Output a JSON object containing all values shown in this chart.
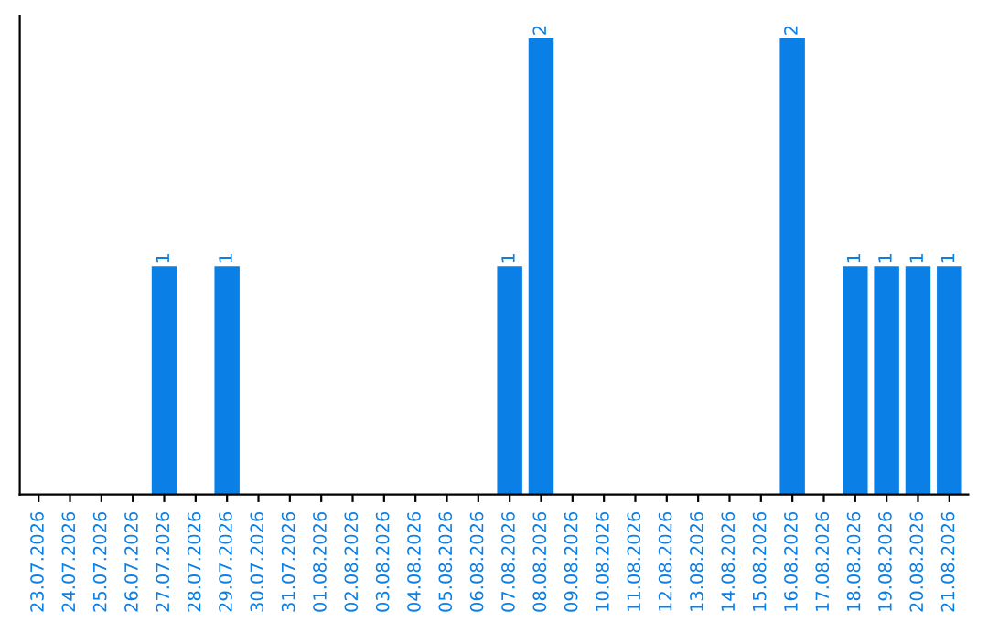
{
  "chart_data": {
    "type": "bar",
    "categories": [
      "23.07.2026",
      "24.07.2026",
      "25.07.2026",
      "26.07.2026",
      "27.07.2026",
      "28.07.2026",
      "29.07.2026",
      "30.07.2026",
      "31.07.2026",
      "01.08.2026",
      "02.08.2026",
      "03.08.2026",
      "04.08.2026",
      "05.08.2026",
      "06.08.2026",
      "07.08.2026",
      "08.08.2026",
      "09.08.2026",
      "10.08.2026",
      "11.08.2026",
      "12.08.2026",
      "13.08.2026",
      "14.08.2026",
      "15.08.2026",
      "16.08.2026",
      "17.08.2026",
      "18.08.2026",
      "19.08.2026",
      "20.08.2026",
      "21.08.2026"
    ],
    "values": [
      0,
      0,
      0,
      0,
      1,
      0,
      1,
      0,
      0,
      0,
      0,
      0,
      0,
      0,
      0,
      1,
      2,
      0,
      0,
      0,
      0,
      0,
      0,
      0,
      2,
      0,
      1,
      1,
      1,
      1
    ],
    "value_labels": [
      null,
      null,
      null,
      null,
      "1",
      null,
      "1",
      null,
      null,
      null,
      null,
      null,
      null,
      null,
      null,
      "1",
      "2",
      null,
      null,
      null,
      null,
      null,
      null,
      null,
      "2",
      null,
      "1",
      "1",
      "1",
      "1"
    ],
    "color": "#0a7fe6",
    "grid": false,
    "legend": false,
    "tick_labels": "x"
  }
}
